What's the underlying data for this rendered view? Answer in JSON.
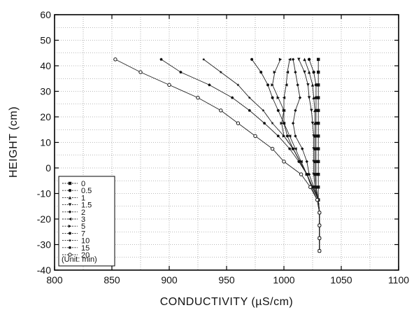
{
  "chart_data": {
    "type": "line",
    "xlabel": "CONDUCTIVITY (µS/cm)",
    "ylabel": "HEIGHT (cm)",
    "xlim": [
      800,
      1100
    ],
    "ylim": [
      -40,
      60
    ],
    "xticks": [
      800,
      850,
      900,
      950,
      1000,
      1050,
      1100
    ],
    "yticks": [
      -40,
      -30,
      -20,
      -10,
      0,
      10,
      20,
      30,
      40,
      50,
      60
    ],
    "grid": true,
    "legend_position": "bottom-left",
    "legend_note": "(Unit: min)",
    "heights": [
      42.5,
      37.5,
      32.5,
      27.5,
      22.5,
      17.5,
      12.5,
      7.5,
      2.5,
      -2.5,
      -7.5,
      -12.5,
      -17.5,
      -22.5,
      -27.5,
      -32.5
    ],
    "series": [
      {
        "name": "0",
        "marker": "square",
        "values": [
          1030,
          1030,
          1030,
          1030,
          1030,
          1030,
          1030,
          1030,
          1030,
          1030,
          1030,
          1030,
          1031,
          1031,
          1031,
          1031
        ]
      },
      {
        "name": "0.5",
        "marker": "circle",
        "values": [
          1022,
          1026,
          1028,
          1028,
          1028,
          1028,
          1028,
          1028,
          1028,
          1028,
          1028,
          1030,
          1031,
          1031,
          1031,
          1031
        ]
      },
      {
        "name": "1",
        "marker": "triangle-up",
        "values": [
          1018,
          1022,
          1025,
          1026,
          1027,
          1027,
          1027,
          1027,
          1027,
          1027,
          1028,
          1030,
          1031,
          1031,
          1031,
          1031
        ]
      },
      {
        "name": "1.5",
        "marker": "triangle-down",
        "values": [
          1013,
          1018,
          1021,
          1022,
          1024,
          1025,
          1026,
          1026,
          1026,
          1026,
          1027,
          1030,
          1031,
          1031,
          1031,
          1031
        ]
      },
      {
        "name": "2",
        "marker": "diamond",
        "values": [
          1008,
          1010,
          1012,
          1014,
          1010,
          1008,
          1010,
          1016,
          1020,
          1022,
          1026,
          1030,
          1031,
          1031,
          1031,
          1031
        ]
      },
      {
        "name": "3",
        "marker": "triangle-left",
        "values": [
          1005,
          1003,
          1002,
          1000,
          1000,
          1000,
          1005,
          1010,
          1015,
          1020,
          1025,
          1030,
          1031,
          1031,
          1031,
          1031
        ]
      },
      {
        "name": "5",
        "marker": "triangle-right",
        "values": [
          997,
          992,
          990,
          995,
          1000,
          998,
          1000,
          1008,
          1014,
          1020,
          1025,
          1030,
          1031,
          1031,
          1031,
          1031
        ]
      },
      {
        "name": "7",
        "marker": "hexagon",
        "values": [
          972,
          980,
          986,
          990,
          995,
          1000,
          1003,
          1008,
          1014,
          1020,
          1025,
          1030,
          1031,
          1031,
          1031,
          1031
        ]
      },
      {
        "name": "10",
        "marker": "star",
        "values": [
          930,
          945,
          960,
          970,
          982,
          990,
          1000,
          1008,
          1014,
          1020,
          1025,
          1030,
          1031,
          1031,
          1031,
          1031
        ]
      },
      {
        "name": "15",
        "marker": "pentagon",
        "values": [
          893,
          910,
          935,
          955,
          970,
          983,
          995,
          1005,
          1013,
          1020,
          1024,
          1029,
          1031,
          1031,
          1031,
          1031
        ]
      },
      {
        "name": "20",
        "marker": "circle-open",
        "values": [
          853,
          875,
          900,
          925,
          945,
          960,
          975,
          990,
          1000,
          1015,
          1023,
          1029,
          1031,
          1031,
          1031,
          1031
        ]
      }
    ]
  }
}
